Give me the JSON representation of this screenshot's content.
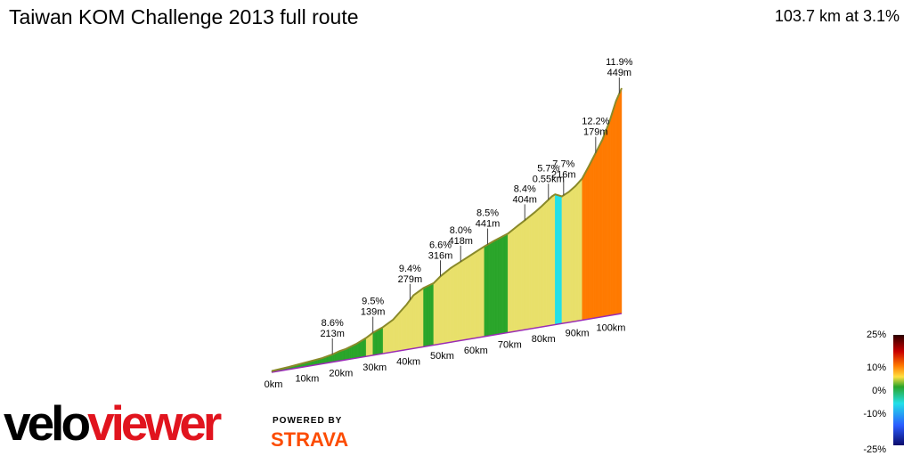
{
  "header": {
    "title": "Taiwan KOM Challenge 2013 full route",
    "summary": "103.7 km at 3.1%"
  },
  "branding": {
    "logo_part1": "velo",
    "logo_part2": "viewer",
    "powered_by": "POWERED BY",
    "strava": "STRAVA"
  },
  "colors": {
    "line": "#8a8a2a",
    "base": "#9a2bb5",
    "flat": "#2aa52a",
    "mild": "#e8e06a",
    "steep": "#ff7a00",
    "descent": "#22e0e8"
  },
  "chart_data": {
    "type": "area",
    "title": "Taiwan KOM Challenge 2013 full route",
    "xlabel": "",
    "ylabel": "",
    "x_ticks": [
      "0km",
      "10km",
      "20km",
      "30km",
      "40km",
      "50km",
      "60km",
      "70km",
      "80km",
      "90km",
      "100km"
    ],
    "x": [
      0,
      5,
      10,
      15,
      18,
      20,
      22,
      25,
      28,
      30,
      33,
      36,
      40,
      42,
      45,
      48,
      50,
      53,
      56,
      60,
      63,
      66,
      70,
      73,
      75,
      78,
      80,
      83,
      84,
      86,
      88,
      90,
      92,
      94,
      96,
      98,
      100,
      102,
      103.7
    ],
    "elevation_m": [
      15,
      30,
      50,
      70,
      95,
      120,
      135,
      175,
      230,
      280,
      330,
      400,
      560,
      660,
      730,
      770,
      840,
      920,
      980,
      1060,
      1120,
      1170,
      1230,
      1310,
      1360,
      1440,
      1500,
      1600,
      1620,
      1580,
      1620,
      1680,
      1760,
      1900,
      2050,
      2200,
      2400,
      2650,
      2800
    ],
    "grade_scale": [
      {
        "label": "25%",
        "color": "#3a0000"
      },
      {
        "label": "10%",
        "color": "#ff8c00"
      },
      {
        "label": "0%",
        "color": "#2aa52a"
      },
      {
        "label": "-10%",
        "color": "#22e0e8"
      },
      {
        "label": "-25%",
        "color": "#1a1a8c"
      }
    ],
    "annotations": [
      {
        "x": 18,
        "grade": "8.6%",
        "length": "213m"
      },
      {
        "x": 30,
        "grade": "9.5%",
        "length": "139m"
      },
      {
        "x": 41,
        "grade": "9.4%",
        "length": "279m"
      },
      {
        "x": 50,
        "grade": "6.6%",
        "length": "316m"
      },
      {
        "x": 56,
        "grade": "8.0%",
        "length": "418m"
      },
      {
        "x": 64,
        "grade": "8.5%",
        "length": "441m"
      },
      {
        "x": 75,
        "grade": "8.4%",
        "length": "404m"
      },
      {
        "x": 82,
        "grade": "5.7%",
        "length": "0.55km"
      },
      {
        "x": 86.5,
        "grade": "7.7%",
        "length": "216m"
      },
      {
        "x": 96,
        "grade": "12.2%",
        "length": "179m"
      },
      {
        "x": 103,
        "grade": "11.9%",
        "length": "449m"
      }
    ]
  }
}
